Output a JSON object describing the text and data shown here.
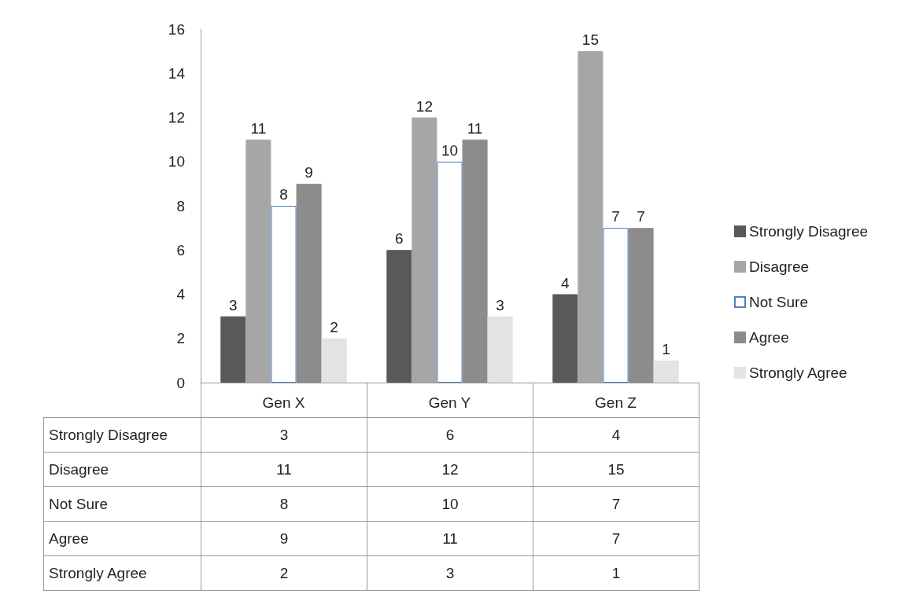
{
  "chart_data": {
    "type": "bar",
    "categories": [
      "Gen X",
      "Gen Y",
      "Gen Z"
    ],
    "series": [
      {
        "name": "Strongly Disagree",
        "color": "#595959",
        "values": [
          3,
          6,
          4
        ]
      },
      {
        "name": "Disagree",
        "color": "#a6a6a6",
        "values": [
          11,
          12,
          15
        ]
      },
      {
        "name": "Not Sure",
        "color": "#ffffff",
        "values": [
          8,
          10,
          7
        ]
      },
      {
        "name": "Agree",
        "color": "#8c8c8c",
        "values": [
          9,
          11,
          7
        ]
      },
      {
        "name": "Strongly Agree",
        "color": "#e3e3e3",
        "values": [
          2,
          3,
          1
        ]
      }
    ],
    "annotations": [
      "3",
      "6",
      "4",
      "11",
      "12",
      "15",
      "8",
      "10",
      "7",
      "9",
      "11",
      "7",
      "2",
      "3",
      "1"
    ],
    "ylim": [
      0,
      16
    ],
    "yticks": [
      0,
      2,
      4,
      6,
      8,
      10,
      12,
      14,
      16
    ],
    "grid": false,
    "legend": "right",
    "data_labels": true
  }
}
